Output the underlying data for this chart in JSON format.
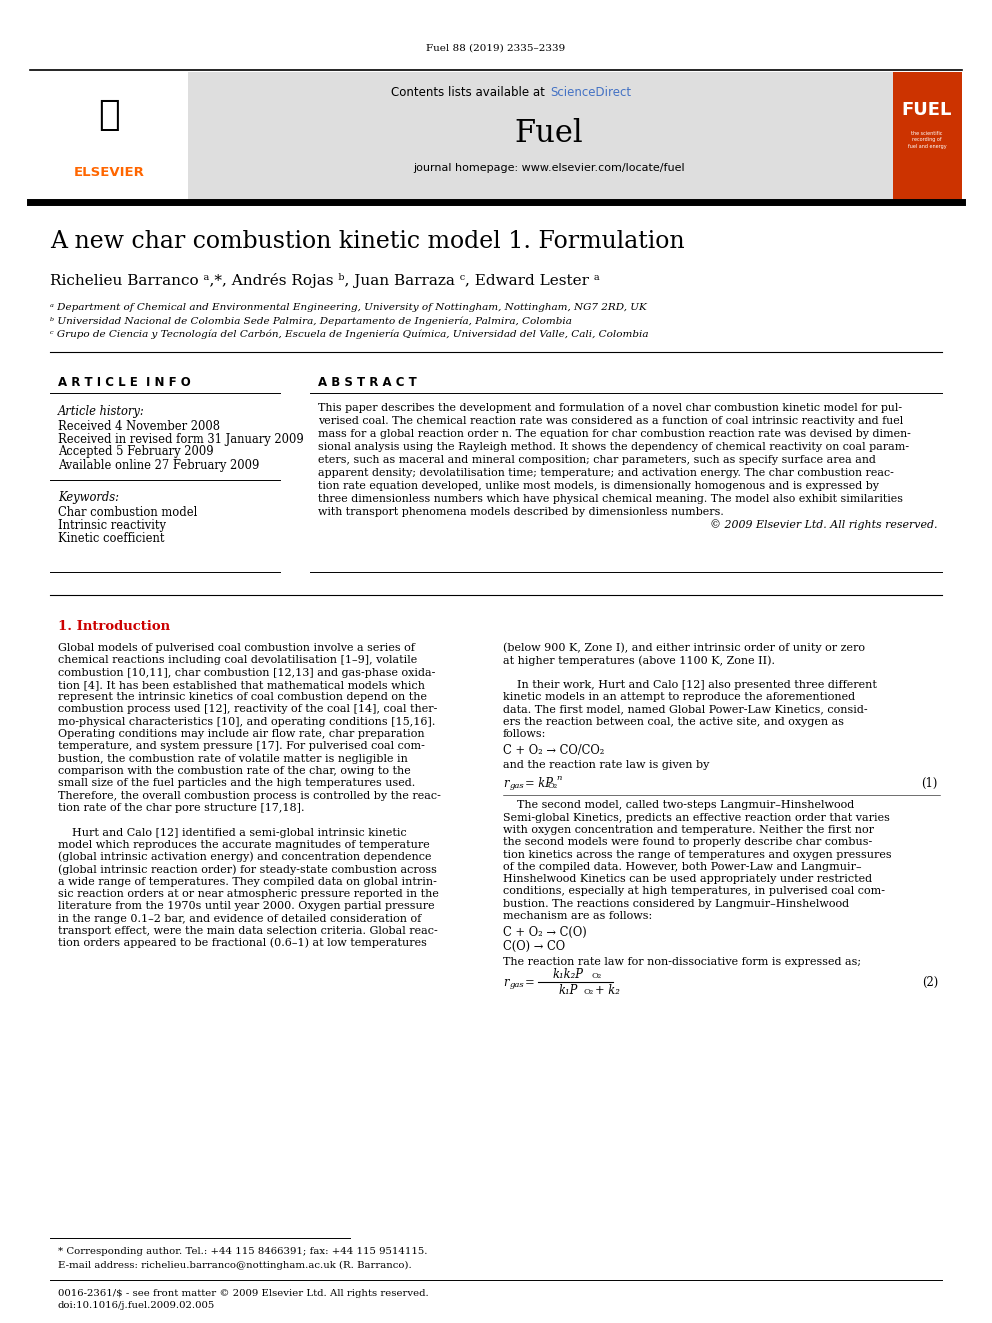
{
  "page_bg": "#ffffff",
  "header_journal_ref": "Fuel 88 (2019) 2335–2339",
  "journal_name": "Fuel",
  "journal_homepage": "journal homepage: www.elsevier.com/locate/fuel",
  "contents_text": "Contents lists available at ScienceDirect",
  "sciencedirect_color": "#4472C4",
  "elsevier_color": "#FF6600",
  "header_bg": "#DEDEDE",
  "fuel_logo_bg": "#CC3300",
  "title": "A new char combustion kinetic model 1. Formulation",
  "authors": "Richelieu Barranco ᵃ,*, Andrés Rojas ᵇ, Juan Barraza ᶜ, Edward Lester ᵃ",
  "affil_a": "ᵃ Department of Chemical and Environmental Engineering, University of Nottingham, Nottingham, NG7 2RD, UK",
  "affil_b": "ᵇ Universidad Nacional de Colombia Sede Palmira, Departamento de Ingeniería, Palmira, Colombia",
  "affil_c": "ᶜ Grupo de Ciencia y Tecnología del Carbón, Escuela de Ingeniería Química, Universidad del Valle, Cali, Colombia",
  "article_info_header": "A R T I C L E  I N F O",
  "abstract_header": "A B S T R A C T",
  "article_history_label": "Article history:",
  "received": "Received 4 November 2008",
  "received_revised": "Received in revised form 31 January 2009",
  "accepted": "Accepted 5 February 2009",
  "available": "Available online 27 February 2009",
  "keywords_label": "Keywords:",
  "keywords": [
    "Char combustion model",
    "Intrinsic reactivity",
    "Kinetic coefficient"
  ],
  "abstract_lines": [
    "This paper describes the development and formulation of a novel char combustion kinetic model for pul-",
    "verised coal. The chemical reaction rate was considered as a function of coal intrinsic reactivity and fuel",
    "mass for a global reaction order n. The equation for char combustion reaction rate was devised by dimen-",
    "sional analysis using the Rayleigh method. It shows the dependency of chemical reactivity on coal param-",
    "eters, such as maceral and mineral composition; char parameters, such as specify surface area and",
    "apparent density; devolatilisation time; temperature; and activation energy. The char combustion reac-",
    "tion rate equation developed, unlike most models, is dimensionally homogenous and is expressed by",
    "three dimensionless numbers which have physical chemical meaning. The model also exhibit similarities",
    "with transport phenomena models described by dimensionless numbers."
  ],
  "abstract_copyright": "© 2009 Elsevier Ltd. All rights reserved.",
  "intro_header": "1. Introduction",
  "intro_col1": [
    "Global models of pulverised coal combustion involve a series of",
    "chemical reactions including coal devolatilisation [1–9], volatile",
    "combustion [10,11], char combustion [12,13] and gas-phase oxida-",
    "tion [4]. It has been established that mathematical models which",
    "represent the intrinsic kinetics of coal combustion depend on the",
    "combustion process used [12], reactivity of the coal [14], coal ther-",
    "mo-physical characteristics [10], and operating conditions [15,16].",
    "Operating conditions may include air flow rate, char preparation",
    "temperature, and system pressure [17]. For pulverised coal com-",
    "bustion, the combustion rate of volatile matter is negligible in",
    "comparison with the combustion rate of the char, owing to the",
    "small size of the fuel particles and the high temperatures used.",
    "Therefore, the overall combustion process is controlled by the reac-",
    "tion rate of the char pore structure [17,18].",
    "",
    "    Hurt and Calo [12] identified a semi-global intrinsic kinetic",
    "model which reproduces the accurate magnitudes of temperature",
    "(global intrinsic activation energy) and concentration dependence",
    "(global intrinsic reaction order) for steady-state combustion across",
    "a wide range of temperatures. They compiled data on global intrin-",
    "sic reaction orders at or near atmospheric pressure reported in the",
    "literature from the 1970s until year 2000. Oxygen partial pressure",
    "in the range 0.1–2 bar, and evidence of detailed consideration of",
    "transport effect, were the main data selection criteria. Global reac-",
    "tion orders appeared to be fractional (0.6–1) at low temperatures"
  ],
  "intro_col2_top": [
    "(below 900 K, Zone I), and either intrinsic order of unity or zero",
    "at higher temperatures (above 1100 K, Zone II).",
    "",
    "    In their work, Hurt and Calo [12] also presented three different",
    "kinetic models in an attempt to reproduce the aforementioned",
    "data. The first model, named Global Power-Law Kinetics, consid-",
    "ers the reaction between coal, the active site, and oxygen as",
    "follows:"
  ],
  "chem_eq1": "C + O₂ → CO/CO₂",
  "rate_law_text": "and the reaction rate law is given by",
  "rate_eq1_label": "(1)",
  "intro_col2_mid": [
    "    The second model, called two-steps Langmuir–Hinshelwood",
    "Semi-global Kinetics, predicts an effective reaction order that varies",
    "with oxygen concentration and temperature. Neither the first nor",
    "the second models were found to properly describe char combus-",
    "tion kinetics across the range of temperatures and oxygen pressures",
    "of the compiled data. However, both Power-Law and Langmuir–",
    "Hinshelwood Kinetics can be used appropriately under restricted",
    "conditions, especially at high temperatures, in pulverised coal com-",
    "bustion. The reactions considered by Langmuir–Hinshelwood",
    "mechanism are as follows:"
  ],
  "chem_eq2a": "C + O₂ → C(O)",
  "chem_eq2b": "C(O) → CO",
  "rate_law_text2": "The reaction rate law for non-dissociative form is expressed as;",
  "rate_eq2_label": "(2)",
  "footnote_corresponding": "* Corresponding author. Tel.: +44 115 8466391; fax: +44 115 9514115.",
  "footnote_email": "E-mail address: richelieu.barranco@nottingham.ac.uk (R. Barranco).",
  "footnote_issn": "0016-2361/$ - see front matter © 2009 Elsevier Ltd. All rights reserved.",
  "footnote_doi": "doi:10.1016/j.fuel.2009.02.005"
}
